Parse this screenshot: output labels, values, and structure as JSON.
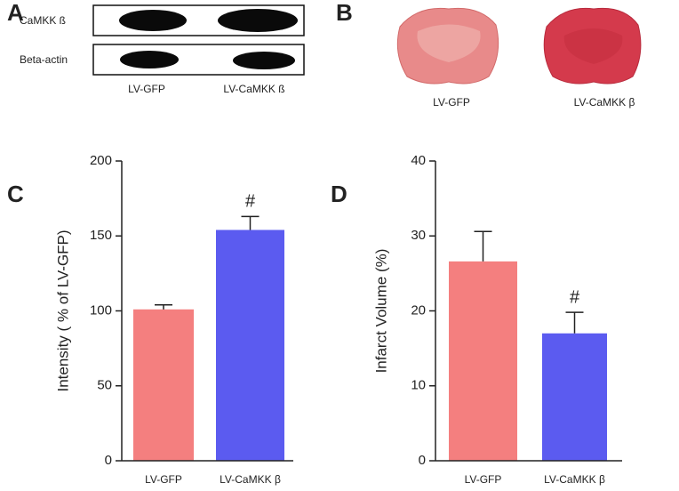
{
  "blot": {
    "panel_label": "A",
    "rows": [
      "CaMKK ß",
      "Beta-actin"
    ],
    "lanes": [
      "LV-GFP",
      "LV-CaMKK ß"
    ]
  },
  "brain_sections": {
    "panel_label": "B",
    "labels": [
      "LV-GFP",
      "LV-CaMKK β"
    ]
  },
  "chart_data": [
    {
      "type": "bar",
      "panel_label": "C",
      "y_label": "Intensity ( % of LV-GFP)",
      "categories": [
        "LV-GFP",
        "LV-CaMKK β"
      ],
      "values": [
        101,
        154
      ],
      "errors": [
        3,
        9
      ],
      "colors": [
        "#f47f7f",
        "#5b5bf0"
      ],
      "annotations": [
        {
          "text": "#",
          "category": "LV-CaMKK β"
        }
      ],
      "ylim": [
        0,
        200
      ],
      "yticks": [
        0,
        50,
        100,
        150,
        200
      ]
    },
    {
      "type": "bar",
      "panel_label": "D",
      "y_label": "Infarct Volume (%)",
      "categories": [
        "LV-GFP",
        "LV-CaMKK β"
      ],
      "values": [
        26.6,
        17
      ],
      "errors": [
        4,
        2.8
      ],
      "colors": [
        "#f47f7f",
        "#5b5bf0"
      ],
      "annotations": [
        {
          "text": "#",
          "category": "LV-CaMKK β"
        }
      ],
      "ylim": [
        0,
        40
      ],
      "yticks": [
        0,
        10,
        20,
        30,
        40
      ]
    }
  ]
}
